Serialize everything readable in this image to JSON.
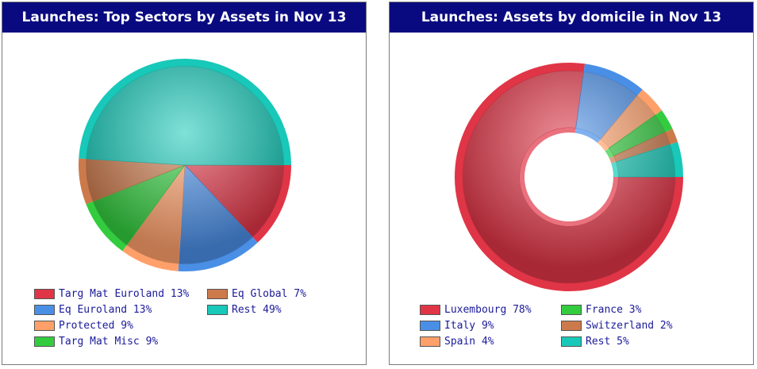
{
  "chart_data": [
    {
      "type": "pie",
      "title": "Launches: Top Sectors by Assets in Nov 13",
      "series": [
        {
          "name": "Targ Mat Euroland",
          "label": "Targ Mat Euroland 13%",
          "value": 13,
          "color": "#e03546"
        },
        {
          "name": "Eq Euroland",
          "label": "Eq Euroland 13%",
          "value": 13,
          "color": "#4a8fe6"
        },
        {
          "name": "Protected",
          "label": "Protected 9%",
          "value": 9,
          "color": "#ffa06a"
        },
        {
          "name": "Targ Mat Misc",
          "label": "Targ Mat Misc 9%",
          "value": 9,
          "color": "#33cc3f"
        },
        {
          "name": "Eq Global",
          "label": "Eq Global 7%",
          "value": 7,
          "color": "#cc7a4c"
        },
        {
          "name": "Rest",
          "label": "Rest 49%",
          "value": 49,
          "color": "#18c8b8"
        }
      ],
      "legend_position": "bottom"
    },
    {
      "type": "pie",
      "subtype": "donut",
      "title": "Launches: Assets by domicile in Nov 13",
      "series": [
        {
          "name": "Luxembourg",
          "label": "Luxembourg 78%",
          "value": 78,
          "color": "#e03546"
        },
        {
          "name": "Italy",
          "label": "Italy 9%",
          "value": 9,
          "color": "#4a8fe6"
        },
        {
          "name": "Spain",
          "label": "Spain 4%",
          "value": 4,
          "color": "#ffa06a"
        },
        {
          "name": "France",
          "label": "France 3%",
          "value": 3,
          "color": "#33cc3f"
        },
        {
          "name": "Switzerland",
          "label": "Switzerland 2%",
          "value": 2,
          "color": "#cc7a4c"
        },
        {
          "name": "Rest",
          "label": "Rest 5%",
          "value": 5,
          "color": "#18c8b8"
        }
      ],
      "legend_position": "bottom"
    }
  ]
}
